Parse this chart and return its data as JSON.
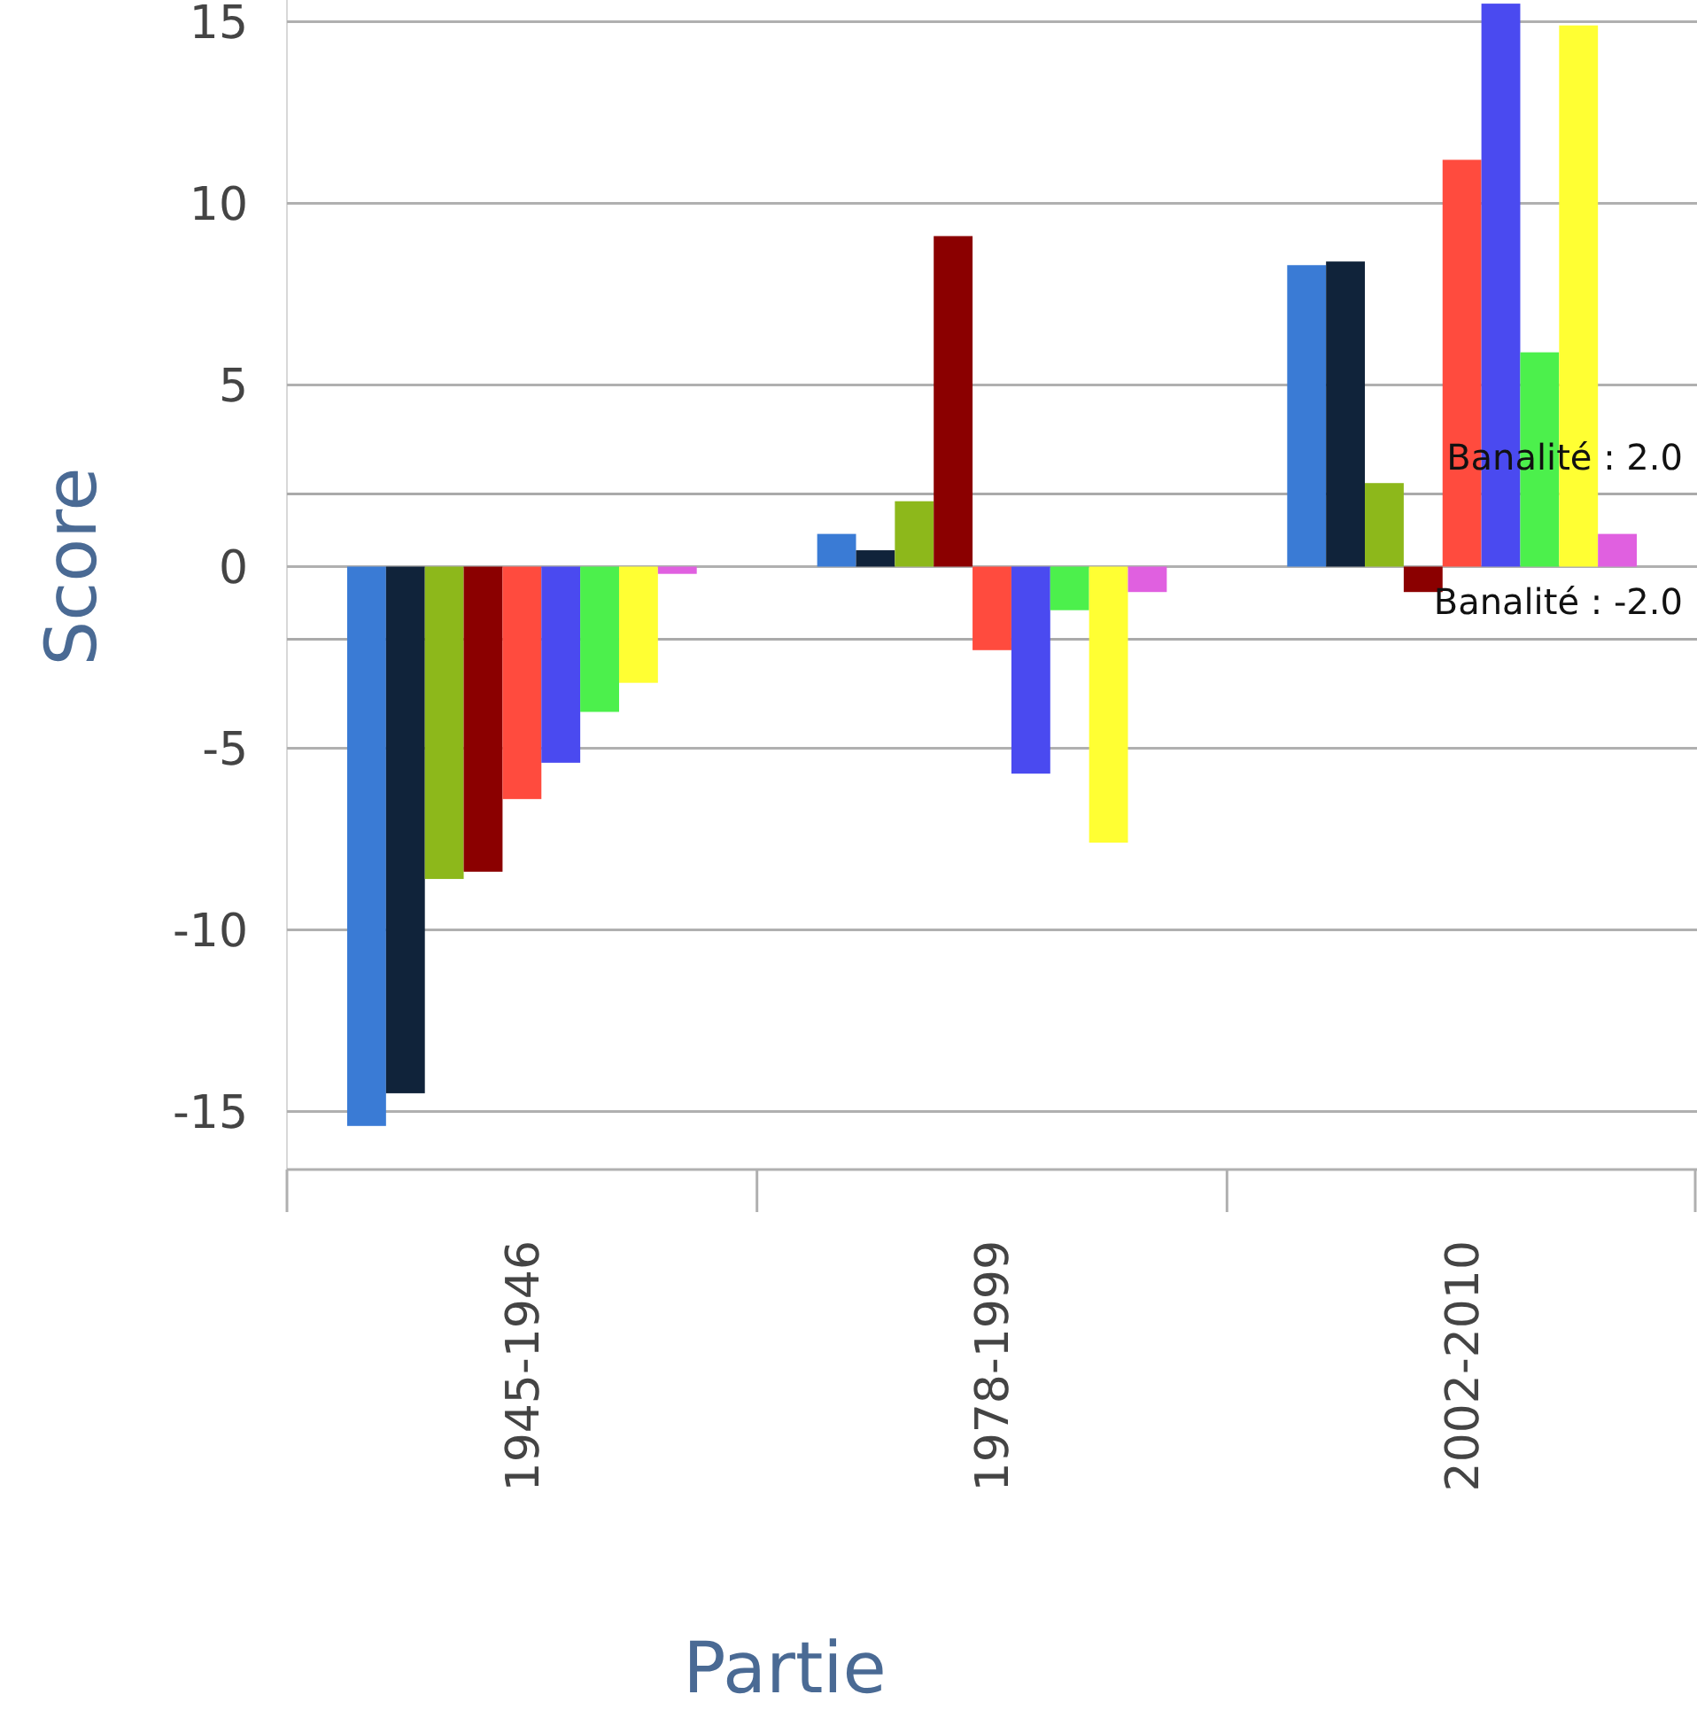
{
  "chart_data": {
    "type": "bar",
    "xlabel": "Partie",
    "ylabel": "Score",
    "categories": [
      "1945-1946",
      "1978-1999",
      "2002-2010"
    ],
    "series": [
      {
        "color": "#3a7bd5",
        "values": [
          -15.4,
          0.9,
          8.3
        ]
      },
      {
        "color": "#10233a",
        "values": [
          -14.5,
          0.45,
          8.4
        ]
      },
      {
        "color": "#8db81b",
        "values": [
          -8.6,
          1.8,
          2.3
        ]
      },
      {
        "color": "#8b0000",
        "values": [
          -8.4,
          9.1,
          -0.7
        ]
      },
      {
        "color": "#ff4b3e",
        "values": [
          -6.4,
          -2.3,
          11.2
        ]
      },
      {
        "color": "#4a4af0",
        "values": [
          -5.4,
          -5.7,
          15.5
        ]
      },
      {
        "color": "#4cf04c",
        "values": [
          -4.0,
          -1.2,
          5.9
        ]
      },
      {
        "color": "#ffff33",
        "values": [
          -3.2,
          -7.6,
          14.9
        ]
      },
      {
        "color": "#e060e0",
        "values": [
          -0.2,
          -0.7,
          0.9
        ]
      }
    ],
    "ylim": [
      -16.6,
      15.6
    ],
    "yticks": [
      -15,
      -10,
      -5,
      0,
      5,
      10,
      15
    ],
    "grid": "y",
    "ref_lines": [
      {
        "axis": "y",
        "value": 2,
        "label": "Banalité : 2.0",
        "color": "#aaaaaa"
      },
      {
        "axis": "y",
        "value": -2,
        "label": "Banalité : -2.0",
        "color": "#aaaaaa"
      }
    ]
  }
}
